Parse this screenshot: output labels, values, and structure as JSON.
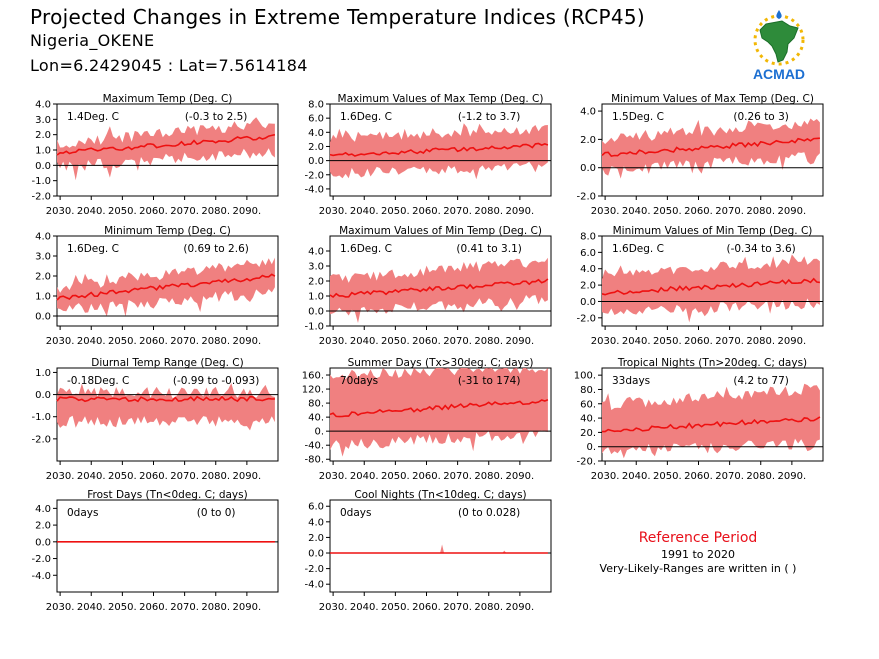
{
  "header": {
    "title": "Projected Changes in Extreme Temperature Indices (RCP45)",
    "location": "Nigeria_OKENE",
    "coords": "Lon=6.2429045 : Lat=7.5614184"
  },
  "logo": {
    "text": "ACMAD",
    "icon": "africa-sun-logo"
  },
  "colors": {
    "band": "#f08080",
    "line": "#ee1111",
    "zero": "#000000",
    "ref_title": "#e8101a"
  },
  "reference": {
    "title": "Reference Period",
    "years": "1991 to 2020",
    "note": "Very-Likely-Ranges are written in ( )"
  },
  "chart_data": [
    {
      "type": "area",
      "title": "Maximum Temp (Deg. C)",
      "mean_label": "1.4Deg. C",
      "range_label": "(-0.3 to 2.5)",
      "x_ticks": [
        "2030.",
        "2040.",
        "2050.",
        "2060.",
        "2070.",
        "2080.",
        "2090."
      ],
      "xlim": [
        2029,
        2100
      ],
      "ylim": [
        -2,
        4
      ],
      "y_ticks": [
        "4.0",
        "3.0",
        "2.0",
        "1.0",
        "0.0",
        "-1.0",
        "-2.0"
      ],
      "yticks": [
        4,
        3,
        2,
        1,
        0,
        -1,
        -2
      ],
      "series": [
        {
          "name": "mean",
          "start": 0.8,
          "end": 1.9
        },
        {
          "name": "low",
          "start": -0.1,
          "end": 0.9
        },
        {
          "name": "high",
          "start": 1.4,
          "end": 2.8
        }
      ]
    },
    {
      "type": "area",
      "title": "Maximum Values of Max Temp (Deg. C)",
      "mean_label": "1.6Deg. C",
      "range_label": "(-1.2 to 3.7)",
      "x_ticks": [
        "2030.",
        "2040.",
        "2050.",
        "2060.",
        "2070.",
        "2080.",
        "2090."
      ],
      "xlim": [
        2029,
        2100
      ],
      "ylim": [
        -5,
        8
      ],
      "y_ticks": [
        "8.0",
        "6.0",
        "4.0",
        "2.0",
        "0.0",
        "-2.0",
        "-4.0"
      ],
      "yticks": [
        8,
        6,
        4,
        2,
        0,
        -2,
        -4
      ],
      "series": [
        {
          "name": "mean",
          "start": 0.7,
          "end": 2.2
        },
        {
          "name": "low",
          "start": -1.8,
          "end": -0.8
        },
        {
          "name": "high",
          "start": 3.2,
          "end": 4.6
        }
      ]
    },
    {
      "type": "area",
      "title": "Minimum Values of Max Temp (Deg. C)",
      "mean_label": "1.5Deg. C",
      "range_label": "(0.26 to 3)",
      "x_ticks": [
        "2030.",
        "2040.",
        "2050.",
        "2060.",
        "2070.",
        "2080.",
        "2090."
      ],
      "xlim": [
        2029,
        2100
      ],
      "ylim": [
        -2,
        4.5
      ],
      "y_ticks": [
        "4.0",
        "2.0",
        "0.0",
        "-2.0"
      ],
      "yticks": [
        4,
        2,
        0,
        -2
      ],
      "series": [
        {
          "name": "mean",
          "start": 0.9,
          "end": 2.0
        },
        {
          "name": "low",
          "start": -0.2,
          "end": 0.8
        },
        {
          "name": "high",
          "start": 2.0,
          "end": 3.2
        }
      ]
    },
    {
      "type": "area",
      "title": "Minimum Temp (Deg. C)",
      "mean_label": "1.6Deg. C",
      "range_label": "(0.69 to 2.6)",
      "x_ticks": [
        "2030.",
        "2040.",
        "2050.",
        "2060.",
        "2070.",
        "2080.",
        "2090."
      ],
      "xlim": [
        2029,
        2100
      ],
      "ylim": [
        -0.5,
        4
      ],
      "y_ticks": [
        "4.0",
        "3.0",
        "2.0",
        "1.0",
        "0.0"
      ],
      "yticks": [
        4,
        3,
        2,
        1,
        0
      ],
      "series": [
        {
          "name": "mean",
          "start": 0.9,
          "end": 2.0
        },
        {
          "name": "low",
          "start": 0.3,
          "end": 1.2
        },
        {
          "name": "high",
          "start": 1.4,
          "end": 2.8
        }
      ]
    },
    {
      "type": "area",
      "title": "Maximum Values of Min Temp (Deg. C)",
      "mean_label": "1.6Deg. C",
      "range_label": "(0.41 to 3.1)",
      "x_ticks": [
        "2030.",
        "2040.",
        "2050.",
        "2060.",
        "2070.",
        "2080.",
        "2090."
      ],
      "xlim": [
        2029,
        2100
      ],
      "ylim": [
        -1,
        5
      ],
      "y_ticks": [
        "4.0",
        "3.0",
        "2.0",
        "1.0",
        "0.0",
        "-1.0"
      ],
      "yticks": [
        4,
        3,
        2,
        1,
        0,
        -1
      ],
      "series": [
        {
          "name": "mean",
          "start": 1.0,
          "end": 2.0
        },
        {
          "name": "low",
          "start": -0.1,
          "end": 0.8
        },
        {
          "name": "high",
          "start": 2.1,
          "end": 3.3
        }
      ]
    },
    {
      "type": "area",
      "title": "Minimum Values of Min Temp (Deg. C)",
      "mean_label": "1.6Deg. C",
      "range_label": "(-0.34 to 3.6)",
      "x_ticks": [
        "2030.",
        "2040.",
        "2050.",
        "2060.",
        "2070.",
        "2080.",
        "2090."
      ],
      "xlim": [
        2029,
        2100
      ],
      "ylim": [
        -3,
        8
      ],
      "y_ticks": [
        "8.0",
        "6.0",
        "4.0",
        "2.0",
        "0.0",
        "-2.0"
      ],
      "yticks": [
        8,
        6,
        4,
        2,
        0,
        -2
      ],
      "series": [
        {
          "name": "mean",
          "start": 1.0,
          "end": 2.6
        },
        {
          "name": "low",
          "start": -1.3,
          "end": -0.2
        },
        {
          "name": "high",
          "start": 3.3,
          "end": 5.0
        }
      ]
    },
    {
      "type": "area",
      "title": "Diurnal Temp Range (Deg. C)",
      "mean_label": "-0.18Deg. C",
      "range_label": "(-0.99 to -0.093)",
      "x_ticks": [
        "2030.",
        "2040.",
        "2050.",
        "2060.",
        "2070.",
        "2080.",
        "2090."
      ],
      "xlim": [
        2029,
        2100
      ],
      "ylim": [
        -3,
        1.2
      ],
      "y_ticks": [
        "1.0",
        "0.0",
        "-1.0",
        "-2.0"
      ],
      "yticks": [
        1,
        0,
        -1,
        -2
      ],
      "series": [
        {
          "name": "mean",
          "start": -0.2,
          "end": -0.2
        },
        {
          "name": "low",
          "start": -1.2,
          "end": -1.2
        },
        {
          "name": "high",
          "start": 0.1,
          "end": 0.1
        }
      ]
    },
    {
      "type": "area",
      "title": "Summer Days (Tx>30deg. C; days)",
      "mean_label": "70days",
      "range_label": "(-31 to 174)",
      "x_ticks": [
        "2030.",
        "2040.",
        "2050.",
        "2060.",
        "2070.",
        "2080.",
        "2090."
      ],
      "xlim": [
        2029,
        2100
      ],
      "ylim": [
        -85,
        180
      ],
      "y_ticks": [
        "160.",
        "120.",
        "80.",
        "40.",
        "0.",
        "-40.",
        "-80."
      ],
      "yticks": [
        160,
        120,
        80,
        40,
        0,
        -40,
        -80
      ],
      "series": [
        {
          "name": "mean",
          "start": 45,
          "end": 88
        },
        {
          "name": "low",
          "start": -40,
          "end": -5
        },
        {
          "name": "high",
          "start": 160,
          "end": 180
        }
      ]
    },
    {
      "type": "area",
      "title": "Tropical Nights (Tn>20deg. C; days)",
      "mean_label": "33days",
      "range_label": "(4.2 to 77)",
      "x_ticks": [
        "2030.",
        "2040.",
        "2050.",
        "2060.",
        "2070.",
        "2080.",
        "2090."
      ],
      "xlim": [
        2029,
        2100
      ],
      "ylim": [
        -20,
        110
      ],
      "y_ticks": [
        "100.",
        "80.",
        "60.",
        "40.",
        "20.",
        "0.",
        "-20."
      ],
      "yticks": [
        100,
        80,
        60,
        40,
        20,
        0,
        -20
      ],
      "series": [
        {
          "name": "mean",
          "start": 22,
          "end": 40
        },
        {
          "name": "low",
          "start": -5,
          "end": 5
        },
        {
          "name": "high",
          "start": 58,
          "end": 82
        }
      ]
    },
    {
      "type": "area",
      "title": "Frost Days (Tn<0deg. C; days)",
      "mean_label": "0days",
      "range_label": "(0 to 0)",
      "x_ticks": [
        "2030.",
        "2040.",
        "2050.",
        "2060.",
        "2070.",
        "2080.",
        "2090."
      ],
      "xlim": [
        2029,
        2100
      ],
      "ylim": [
        -6,
        5
      ],
      "y_ticks": [
        "4.0",
        "2.0",
        "0.0",
        "-2.0",
        "-4.0"
      ],
      "yticks": [
        4,
        2,
        0,
        -2,
        -4
      ],
      "series": [
        {
          "name": "mean",
          "start": 0,
          "end": 0
        },
        {
          "name": "low",
          "start": 0,
          "end": 0
        },
        {
          "name": "high",
          "start": 0,
          "end": 0
        }
      ]
    },
    {
      "type": "area",
      "title": "Cool Nights (Tn<10deg. C; days)",
      "mean_label": "0days",
      "range_label": "(0 to 0.028)",
      "x_ticks": [
        "2030.",
        "2040.",
        "2050.",
        "2060.",
        "2070.",
        "2080.",
        "2090."
      ],
      "xlim": [
        2029,
        2100
      ],
      "ylim": [
        -5,
        6.8
      ],
      "y_ticks": [
        "6.0",
        "4.0",
        "2.0",
        "0.0",
        "-2.0",
        "-4.0"
      ],
      "yticks": [
        6,
        4,
        2,
        0,
        -2,
        -4
      ],
      "series": [
        {
          "name": "mean",
          "start": 0,
          "end": 0
        },
        {
          "name": "low",
          "start": 0,
          "end": 0
        },
        {
          "name": "high",
          "start": 0,
          "end": 0
        }
      ],
      "spikes": [
        {
          "x": 2065,
          "value": 1.1
        },
        {
          "x": 2085,
          "value": 0.3
        }
      ]
    }
  ]
}
